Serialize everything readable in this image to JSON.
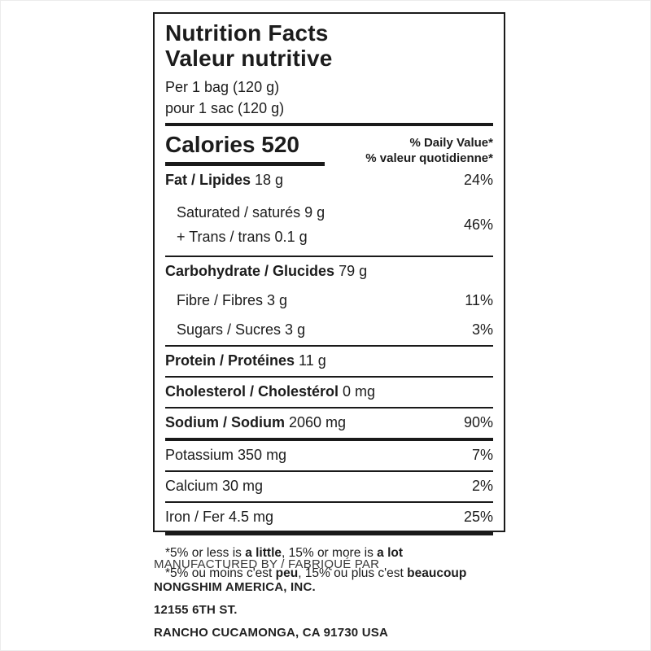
{
  "colors": {
    "text": "#1c1c1c",
    "border": "#1a1a1a",
    "background": "#ffffff"
  },
  "label": {
    "title_en": "Nutrition Facts",
    "title_fr": "Valeur nutritive",
    "serving_en": "Per 1 bag (120 g)",
    "serving_fr": "pour 1 sac (120 g)",
    "calories": "Calories 520",
    "dv_header_en": "% Daily Value*",
    "dv_header_fr": "% valeur quotidienne*",
    "rows": {
      "fat": {
        "bold": "Fat / Lipides",
        "reg": " 18 g",
        "dv": "24%"
      },
      "saturated": {
        "line1": "Saturated / saturés 9 g",
        "line2": "+ Trans / trans 0.1 g",
        "dv": "46%"
      },
      "carb": {
        "bold": "Carbohydrate / Glucides",
        "reg": " 79 g",
        "dv": ""
      },
      "fibre": {
        "reg": "Fibre / Fibres 3 g",
        "dv": "11%"
      },
      "sugars": {
        "reg": "Sugars / Sucres 3 g",
        "dv": "3%"
      },
      "protein": {
        "bold": "Protein / Protéines",
        "reg": " 11 g",
        "dv": ""
      },
      "cholesterol": {
        "bold": "Cholesterol / Cholestérol",
        "reg": " 0 mg",
        "dv": ""
      },
      "sodium": {
        "bold": "Sodium / Sodium",
        "reg": " 2060 mg",
        "dv": "90%"
      },
      "potassium": {
        "reg": "Potassium 350 mg",
        "dv": "7%"
      },
      "calcium": {
        "reg": "Calcium 30 mg",
        "dv": "2%"
      },
      "iron": {
        "reg": "Iron / Fer 4.5 mg",
        "dv": "25%"
      }
    },
    "footnote_en": {
      "pre": "*5% or less is ",
      "bold1": "a little",
      "mid": ", 15% or more is ",
      "bold2": "a lot"
    },
    "footnote_fr": {
      "pre": "*5% ou moins c'est ",
      "bold1": "peu",
      "mid": ", 15% ou plus c'est ",
      "bold2": "beaucoup"
    }
  },
  "manufacturer": {
    "line1": "MANUFACTURED BY / FABRIQUÉ PAR",
    "line2": "NONGSHIM AMERICA, INC.",
    "line3": "12155 6TH ST.",
    "line4": "RANCHO CUCAMONGA, CA 91730 USA"
  }
}
